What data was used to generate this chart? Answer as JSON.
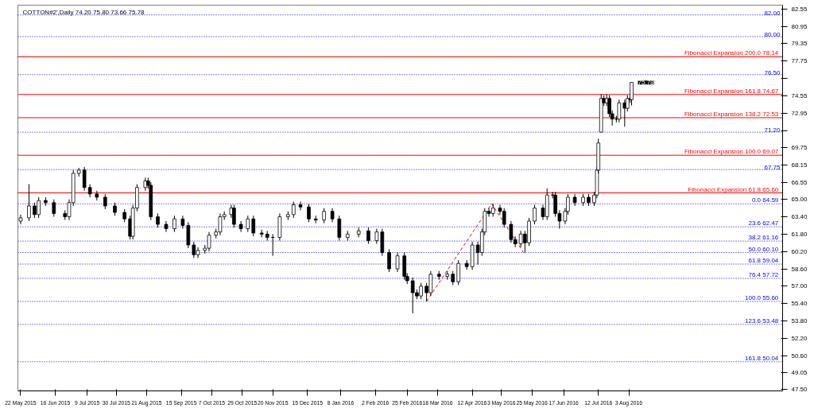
{
  "chart_data": {
    "type": "candlestick",
    "title": "COTTON#2',Daily  74.20 75.80 73.66 75.78",
    "x": [
      "2015-05-22",
      "2015-05-28",
      "2015-06-01",
      "2015-06-04",
      "2015-06-09",
      "2015-06-15",
      "2015-06-23",
      "2015-06-26",
      "2015-06-29",
      "2015-07-03",
      "2015-07-07",
      "2015-07-11",
      "2015-07-16",
      "2015-07-22",
      "2015-07-29",
      "2015-08-05",
      "2015-08-09",
      "2015-08-11",
      "2015-08-14",
      "2015-08-20",
      "2015-08-22",
      "2015-08-24",
      "2015-08-29",
      "2015-09-04",
      "2015-09-10",
      "2015-09-16",
      "2015-09-20",
      "2015-09-24",
      "2015-09-27",
      "2015-10-02",
      "2015-10-05",
      "2015-10-10",
      "2015-10-13",
      "2015-10-16",
      "2015-10-21",
      "2015-10-23",
      "2015-10-28",
      "2015-11-02",
      "2015-11-06",
      "2015-11-12",
      "2015-11-16",
      "2015-11-20",
      "2015-11-25",
      "2015-12-01",
      "2015-12-05",
      "2015-12-10",
      "2015-12-16",
      "2015-12-21",
      "2015-12-27",
      "2016-01-02",
      "2016-01-07",
      "2016-01-13",
      "2016-01-21",
      "2016-01-28",
      "2016-02-03",
      "2016-02-07",
      "2016-02-12",
      "2016-02-18",
      "2016-02-23",
      "2016-02-25",
      "2016-02-29",
      "2016-03-03",
      "2016-03-06",
      "2016-03-10",
      "2016-03-13",
      "2016-03-19",
      "2016-03-25",
      "2016-03-29",
      "2016-04-02",
      "2016-04-08",
      "2016-04-12",
      "2016-04-16",
      "2016-04-19",
      "2016-04-21",
      "2016-04-24",
      "2016-04-27",
      "2016-05-02",
      "2016-05-05",
      "2016-05-10",
      "2016-05-13",
      "2016-05-17",
      "2016-05-20",
      "2016-05-23",
      "2016-05-27",
      "2016-06-02",
      "2016-06-05",
      "2016-06-09",
      "2016-06-11",
      "2016-06-14",
      "2016-06-18",
      "2016-06-20",
      "2016-06-25",
      "2016-07-01",
      "2016-07-05",
      "2016-07-09",
      "2016-07-11",
      "2016-07-12",
      "2016-07-14",
      "2016-07-16",
      "2016-07-18",
      "2016-07-20",
      "2016-07-22",
      "2016-07-25",
      "2016-07-27",
      "2016-07-31",
      "2016-08-02",
      "2016-08-04",
      "2016-08-05"
    ],
    "ohlc": [
      [
        63.0,
        63.6,
        62.7,
        63.3
      ],
      [
        63.3,
        66.4,
        63.0,
        64.4
      ],
      [
        64.4,
        64.7,
        63.3,
        63.6
      ],
      [
        63.6,
        65.2,
        63.3,
        64.9
      ],
      [
        64.9,
        65.2,
        64.4,
        64.7
      ],
      [
        64.7,
        65.0,
        63.4,
        63.7
      ],
      [
        63.7,
        64.0,
        63.1,
        63.4
      ],
      [
        63.4,
        65.0,
        63.1,
        64.7
      ],
      [
        64.7,
        67.7,
        64.4,
        67.4
      ],
      [
        67.4,
        67.9,
        67.1,
        67.7
      ],
      [
        67.7,
        68.0,
        65.8,
        66.1
      ],
      [
        66.1,
        66.4,
        65.2,
        65.5
      ],
      [
        65.5,
        65.8,
        64.9,
        65.2
      ],
      [
        65.2,
        65.5,
        64.1,
        64.4
      ],
      [
        64.4,
        64.7,
        63.5,
        63.8
      ],
      [
        63.8,
        64.1,
        62.9,
        63.2
      ],
      [
        63.2,
        63.5,
        61.3,
        61.6
      ],
      [
        61.6,
        64.5,
        61.3,
        64.2
      ],
      [
        64.2,
        66.4,
        63.9,
        66.1
      ],
      [
        66.1,
        67.0,
        65.8,
        66.7
      ],
      [
        66.7,
        67.0,
        66.0,
        66.3
      ],
      [
        66.3,
        66.6,
        63.1,
        63.4
      ],
      [
        63.4,
        63.7,
        62.4,
        62.7
      ],
      [
        62.7,
        63.0,
        62.0,
        62.3
      ],
      [
        62.3,
        63.5,
        62.0,
        63.2
      ],
      [
        63.2,
        63.5,
        62.3,
        62.6
      ],
      [
        62.6,
        62.9,
        60.5,
        60.8
      ],
      [
        60.8,
        61.1,
        59.6,
        59.9
      ],
      [
        59.9,
        60.6,
        59.6,
        60.3
      ],
      [
        60.3,
        60.8,
        60.0,
        60.5
      ],
      [
        60.5,
        62.0,
        60.2,
        61.7
      ],
      [
        61.7,
        62.3,
        61.4,
        62.0
      ],
      [
        62.0,
        63.7,
        61.7,
        63.4
      ],
      [
        63.4,
        63.9,
        63.1,
        63.6
      ],
      [
        63.6,
        64.5,
        63.3,
        64.2
      ],
      [
        64.2,
        64.5,
        62.4,
        62.7
      ],
      [
        62.7,
        63.0,
        62.0,
        62.3
      ],
      [
        62.3,
        63.5,
        62.0,
        63.2
      ],
      [
        63.2,
        63.5,
        61.6,
        61.9
      ],
      [
        61.9,
        62.2,
        61.5,
        61.8
      ],
      [
        61.8,
        62.1,
        61.2,
        61.5
      ],
      [
        61.5,
        61.8,
        59.8,
        61.5
      ],
      [
        61.5,
        63.7,
        61.2,
        63.4
      ],
      [
        63.4,
        63.9,
        63.1,
        63.6
      ],
      [
        63.6,
        64.8,
        63.3,
        64.5
      ],
      [
        64.5,
        64.8,
        64.0,
        64.3
      ],
      [
        64.3,
        64.6,
        62.9,
        63.2
      ],
      [
        63.2,
        63.5,
        62.8,
        63.1
      ],
      [
        63.1,
        64.2,
        62.8,
        63.9
      ],
      [
        63.9,
        64.2,
        62.9,
        63.2
      ],
      [
        63.2,
        63.5,
        61.2,
        61.5
      ],
      [
        61.5,
        62.1,
        61.2,
        61.8
      ],
      [
        61.8,
        62.4,
        61.5,
        62.1
      ],
      [
        62.1,
        62.4,
        60.9,
        61.2
      ],
      [
        61.2,
        62.3,
        60.9,
        62.0
      ],
      [
        62.0,
        62.3,
        59.8,
        60.1
      ],
      [
        60.1,
        60.4,
        58.3,
        58.6
      ],
      [
        58.6,
        60.1,
        58.3,
        59.8
      ],
      [
        59.8,
        60.1,
        57.6,
        57.9
      ],
      [
        57.9,
        58.2,
        57.2,
        57.5
      ],
      [
        57.5,
        57.8,
        54.5,
        56.4
      ],
      [
        56.4,
        56.7,
        55.8,
        56.1
      ],
      [
        56.1,
        57.3,
        55.8,
        57.0
      ],
      [
        57.0,
        57.3,
        55.6,
        56.4
      ],
      [
        56.4,
        58.4,
        56.1,
        58.1
      ],
      [
        58.1,
        58.4,
        57.6,
        57.9
      ],
      [
        57.9,
        58.4,
        57.6,
        58.1
      ],
      [
        58.1,
        58.4,
        57.1,
        57.4
      ],
      [
        57.4,
        59.4,
        57.1,
        59.1
      ],
      [
        59.1,
        59.4,
        58.5,
        58.8
      ],
      [
        58.8,
        61.1,
        58.5,
        60.8
      ],
      [
        60.8,
        61.1,
        59.0,
        60.1
      ],
      [
        60.1,
        62.3,
        59.8,
        62.0
      ],
      [
        62.0,
        64.2,
        61.7,
        63.9
      ],
      [
        63.9,
        64.2,
        63.4,
        63.7
      ],
      [
        63.7,
        64.6,
        63.4,
        64.2
      ],
      [
        64.2,
        64.5,
        63.6,
        63.9
      ],
      [
        63.9,
        64.2,
        62.4,
        62.7
      ],
      [
        62.7,
        63.0,
        61.0,
        61.3
      ],
      [
        61.3,
        61.6,
        60.6,
        60.9
      ],
      [
        60.9,
        62.1,
        60.6,
        61.8
      ],
      [
        61.8,
        62.1,
        60.1,
        61.0
      ],
      [
        61.0,
        63.3,
        60.7,
        63.0
      ],
      [
        63.0,
        64.5,
        62.7,
        64.2
      ],
      [
        64.2,
        64.5,
        63.1,
        63.4
      ],
      [
        63.4,
        66.0,
        63.1,
        65.4
      ],
      [
        65.4,
        65.7,
        65.1,
        65.4
      ],
      [
        65.4,
        65.7,
        63.4,
        63.7
      ],
      [
        63.7,
        64.0,
        62.3,
        63.0
      ],
      [
        63.0,
        64.2,
        62.7,
        63.9
      ],
      [
        63.9,
        65.5,
        63.6,
        65.2
      ],
      [
        65.2,
        65.5,
        64.4,
        64.7
      ],
      [
        64.7,
        65.5,
        64.4,
        65.2
      ],
      [
        65.2,
        65.5,
        64.4,
        64.7
      ],
      [
        64.7,
        65.7,
        64.4,
        65.4
      ],
      [
        65.4,
        68.0,
        65.1,
        67.7
      ],
      [
        67.7,
        70.6,
        67.4,
        70.2
      ],
      [
        71.2,
        74.7,
        71.2,
        74.3
      ],
      [
        74.3,
        74.6,
        73.6,
        73.9
      ],
      [
        73.9,
        74.7,
        73.6,
        74.3
      ],
      [
        74.3,
        74.6,
        72.6,
        72.9
      ],
      [
        72.9,
        73.2,
        71.8,
        72.4
      ],
      [
        72.4,
        72.7,
        72.1,
        72.4
      ],
      [
        72.4,
        74.2,
        72.1,
        73.9
      ],
      [
        73.9,
        74.2,
        71.7,
        73.4
      ],
      [
        73.4,
        74.6,
        73.1,
        74.3
      ],
      [
        74.3,
        74.6,
        73.9,
        74.2
      ],
      [
        74.2,
        75.8,
        73.66,
        75.78
      ]
    ],
    "series": [
      {
        "type": "line",
        "color": "#ff0000",
        "line_style": "dashed",
        "x": [
          "2016-03-10",
          "2016-04-26",
          "2016-05-19"
        ],
        "values": [
          55.6,
          64.59,
          60.1
        ]
      }
    ],
    "ref_lines": [
      {
        "axis": "y",
        "value": 82.0,
        "label": "82.00",
        "color": "#0000ff",
        "line_style": "dotted"
      },
      {
        "axis": "y",
        "value": 80.0,
        "label": "80.00",
        "color": "#0000ff",
        "line_style": "dotted"
      },
      {
        "axis": "y",
        "value": 76.5,
        "label": "76.50",
        "color": "#0000ff",
        "line_style": "dotted"
      },
      {
        "axis": "y",
        "value": 71.2,
        "label": "71.20",
        "color": "#0000ff",
        "line_style": "dotted"
      },
      {
        "axis": "y",
        "value": 67.75,
        "label": "67.75",
        "color": "#0000ff",
        "line_style": "dotted"
      },
      {
        "axis": "y",
        "value": 78.14,
        "label": "Fibonacci Expansion 200.0  78.14",
        "color": "#ff0000",
        "line_style": "solid"
      },
      {
        "axis": "y",
        "value": 74.67,
        "label": "Fibonacci Expansion 161.8  74.67",
        "color": "#ff0000",
        "line_style": "solid"
      },
      {
        "axis": "y",
        "value": 72.53,
        "label": "Fibonacci Expansion 138.2  72.53",
        "color": "#ff0000",
        "line_style": "solid"
      },
      {
        "axis": "y",
        "value": 69.07,
        "label": "Fibonacci Expansion 100.0  69.07",
        "color": "#ff0000",
        "line_style": "solid"
      },
      {
        "axis": "y",
        "value": 65.6,
        "label": "Fibonacci Expansion 61.8  65.60",
        "color": "#ff0000",
        "line_style": "solid"
      },
      {
        "axis": "y",
        "value": 64.59,
        "label": "0.0  64.59",
        "color": "#0000ff",
        "line_style": "dotted"
      },
      {
        "axis": "y",
        "value": 62.47,
        "label": "23.6  62.47",
        "color": "#0000ff",
        "line_style": "dotted"
      },
      {
        "axis": "y",
        "value": 61.16,
        "label": "38.2  61.16",
        "color": "#0000ff",
        "line_style": "dotted"
      },
      {
        "axis": "y",
        "value": 60.1,
        "label": "50.0  60.10",
        "color": "#0000ff",
        "line_style": "dotted"
      },
      {
        "axis": "y",
        "value": 59.04,
        "label": "61.8  59.04",
        "color": "#0000ff",
        "line_style": "dotted"
      },
      {
        "axis": "y",
        "value": 57.72,
        "label": "76.4  57.72",
        "color": "#0000ff",
        "line_style": "dotted"
      },
      {
        "axis": "y",
        "value": 55.6,
        "label": "100.0  55.60",
        "color": "#0000ff",
        "line_style": "dotted"
      },
      {
        "axis": "y",
        "value": 53.48,
        "label": "123.6  53.48",
        "color": "#0000ff",
        "line_style": "dotted"
      },
      {
        "axis": "y",
        "value": 50.04,
        "label": "161.8  50.04",
        "color": "#0000ff",
        "line_style": "dotted"
      }
    ],
    "annotations": [
      {
        "text": "75.78",
        "x": "2016-08-05",
        "y": 75.78
      }
    ],
    "xlim": [
      "2015-05-20",
      "2016-11-22"
    ],
    "xticks": [
      {
        "value": "2015-05-22",
        "label": "22 May 2015"
      },
      {
        "value": "2015-06-16",
        "label": "16 Jun 2015"
      },
      {
        "value": "2015-07-09",
        "label": "9 Jul 2015"
      },
      {
        "value": "2015-07-30",
        "label": "30 Jul 2015"
      },
      {
        "value": "2015-08-21",
        "label": "21 Aug 2015"
      },
      {
        "value": "2015-09-15",
        "label": "15 Sep 2015"
      },
      {
        "value": "2015-10-07",
        "label": "7 Oct 2015"
      },
      {
        "value": "2015-10-29",
        "label": "29 Oct 2015"
      },
      {
        "value": "2015-11-20",
        "label": "20 Nov 2015"
      },
      {
        "value": "2015-12-15",
        "label": "15 Dec 2015"
      },
      {
        "value": "2016-01-08",
        "label": "8 Jan 2016"
      },
      {
        "value": "2016-02-02",
        "label": "2 Feb 2016"
      },
      {
        "value": "2016-02-25",
        "label": "25 Feb 2016"
      },
      {
        "value": "2016-03-18",
        "label": "18 Mar 2016"
      },
      {
        "value": "2016-04-12",
        "label": "12 Apr 2016"
      },
      {
        "value": "2016-05-03",
        "label": "3 May 2016"
      },
      {
        "value": "2016-05-25",
        "label": "25 May 2016"
      },
      {
        "value": "2016-06-17",
        "label": "17 Jun 2016"
      },
      {
        "value": "2016-07-12",
        "label": "12 Jul 2016"
      },
      {
        "value": "2016-08-03",
        "label": "3 Aug 2016"
      }
    ],
    "ylim": [
      47.35,
      82.9
    ],
    "yticks": [
      {
        "value": 82.55,
        "label": "82.55"
      },
      {
        "value": 80.95,
        "label": "80.95"
      },
      {
        "value": 79.35,
        "label": "79.35"
      },
      {
        "value": 77.75,
        "label": "77.75"
      },
      {
        "value": 76.15,
        "label": null
      },
      {
        "value": 74.55,
        "label": "74.55"
      },
      {
        "value": 72.95,
        "label": "72.95"
      },
      {
        "value": 71.35,
        "label": null
      },
      {
        "value": 69.75,
        "label": "69.75"
      },
      {
        "value": 68.15,
        "label": "68.15"
      },
      {
        "value": 66.55,
        "label": "66.55"
      },
      {
        "value": 65.0,
        "label": "65.00"
      },
      {
        "value": 63.4,
        "label": "63.40"
      },
      {
        "value": 61.8,
        "label": "61.80"
      },
      {
        "value": 60.2,
        "label": "60.20"
      },
      {
        "value": 58.6,
        "label": "58.60"
      },
      {
        "value": 57.0,
        "label": "57.00"
      },
      {
        "value": 55.4,
        "label": "55.40"
      },
      {
        "value": 53.8,
        "label": "53.80"
      },
      {
        "value": 52.2,
        "label": "52.20"
      },
      {
        "value": 50.6,
        "label": "50.60"
      },
      {
        "value": 49.05,
        "label": "49.05"
      },
      {
        "value": 47.5,
        "label": "47.50"
      }
    ],
    "grid": false
  }
}
